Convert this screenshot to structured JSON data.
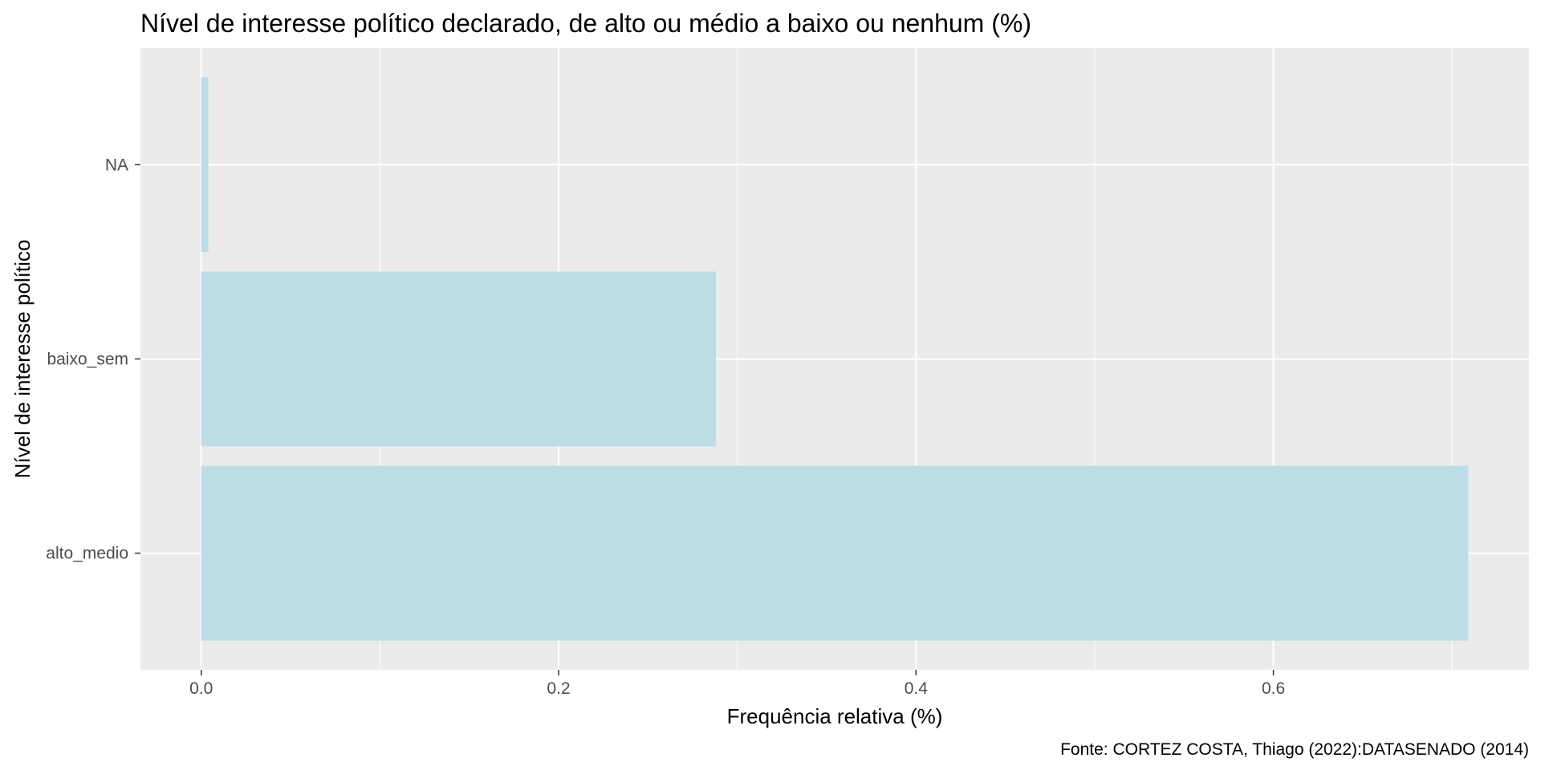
{
  "chart_data": {
    "type": "bar",
    "orientation": "horizontal",
    "title": "Nível de interesse político declarado,  de alto ou médio a baixo ou nenhum (%)",
    "xlabel": "Frequência relativa (%)",
    "ylabel": "Nível de interesse político",
    "caption": "Fonte: CORTEZ COSTA, Thiago (2022):DATASENADO (2014)",
    "categories": [
      "alto_medio",
      "baixo_sem",
      "NA"
    ],
    "values": [
      0.709,
      0.288,
      0.004
    ],
    "xlim": [
      -0.034,
      0.743
    ],
    "xticks": [
      0.0,
      0.2,
      0.4,
      0.6
    ],
    "xtick_labels": [
      "0.0",
      "0.2",
      "0.4",
      "0.6"
    ],
    "grid": true,
    "colors": {
      "bar": "#bcdde6",
      "panel": "#ebebeb",
      "grid_major": "#ffffff",
      "tick_label": "#4d4d4d"
    }
  }
}
